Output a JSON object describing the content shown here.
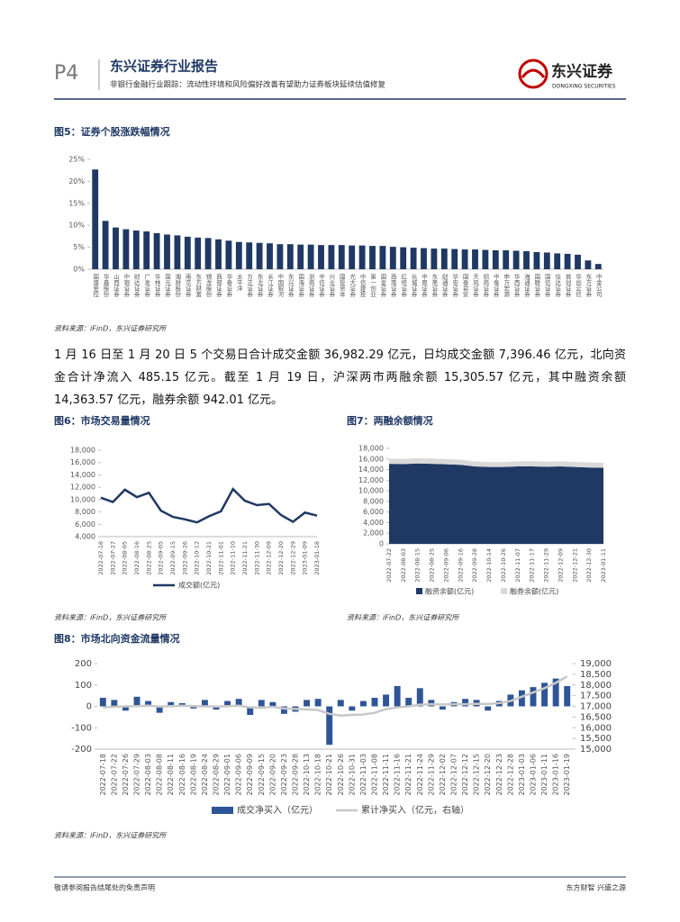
{
  "header": {
    "page": "P4",
    "report": "东兴证券行业报告",
    "subtitle": "非银行金融行业跟踪：流动性环境和风险偏好改善有望助力证券板块延续估值修复",
    "logo": "东兴证券",
    "logo_en": "DONGXING SECURITIES"
  },
  "body_text": "1 月 16 日至 1 月 20 日 5 个交易日合计成交金额 36,982.29 亿元，日均成交金额 7,396.46 亿元，北向资金合计净流入 485.15 亿元。截至 1 月 19 日，沪深两市两融余额 15,305.57 亿元，其中融资余额 14,363.57 亿元，融券余额 942.01 亿元。",
  "footer": {
    "left": "敬请参阅报告结尾处的免责声明",
    "right": "东方财智 兴盛之源"
  },
  "chart_data": [
    {
      "type": "bar",
      "title": "图5：证券个股涨跌幅情况",
      "source": "资料来源：iFinD，东兴证券研究所",
      "color": "#1f3864",
      "categories": [
        "国盛金控",
        "华鑫股份",
        "山西证券",
        "中银证券",
        "财达证券",
        "广发证券",
        "华林证券",
        "国元证券",
        "湘财股份",
        "南京证券",
        "东方财富",
        "锦龙股份",
        "西部证券",
        "华泰证券",
        "太平洋",
        "方正证券",
        "东北证券",
        "长江证券",
        "中国银河",
        "东兴证券",
        "国海证券",
        "浙商证券",
        "中信证券",
        "兴业证券",
        "国投资本",
        "光大证券",
        "中信建投",
        "第一创业",
        "国金证券",
        "西南证券",
        "红塔证券",
        "长城证券",
        "中原证券",
        "东吴证券",
        "财通证券",
        "华安证券",
        "国泰君安",
        "天风证券",
        "招商证券",
        "中泰证券",
        "申万宏源",
        "华西证券",
        "海通证券",
        "国联证券",
        "国信证券",
        "信达证券",
        "首创证券",
        "华创云信",
        "东方证券",
        "中金公司"
      ],
      "values": [
        22.7,
        11.0,
        9.5,
        9.1,
        8.8,
        8.6,
        8.2,
        7.9,
        7.7,
        7.4,
        7.2,
        7.1,
        6.8,
        6.5,
        6.2,
        6.1,
        6.0,
        5.9,
        5.7,
        5.7,
        5.6,
        5.6,
        5.5,
        5.5,
        5.5,
        5.4,
        5.4,
        5.3,
        5.3,
        5.1,
        5.0,
        4.9,
        4.8,
        4.7,
        4.7,
        4.6,
        4.5,
        4.5,
        4.4,
        4.3,
        4.3,
        4.2,
        4.1,
        3.9,
        3.8,
        3.6,
        3.5,
        3.3,
        2.0,
        1.2
      ],
      "ylim": [
        0,
        25
      ],
      "yticks": [
        {
          "value": 0,
          "label": "0%"
        },
        {
          "value": 5,
          "label": "5%"
        },
        {
          "value": 10,
          "label": "10%"
        },
        {
          "value": 15,
          "label": "15%"
        },
        {
          "value": 20,
          "label": "20%"
        },
        {
          "value": 25,
          "label": "25%"
        }
      ]
    },
    {
      "type": "line",
      "title": "图6：市场交易量情况",
      "source": "资料来源：iFinD，东兴证券研究所",
      "categories": [
        "2022-07-18",
        "2022-07-27",
        "2022-08-05",
        "2022-08-16",
        "2022-08-25",
        "2022-09-05",
        "2022-09-15",
        "2022-09-26",
        "2022-10-12",
        "2022-10-21",
        "2022-11-01",
        "2022-11-10",
        "2022-11-21",
        "2022-11-30",
        "2022-12-09",
        "2022-12-20",
        "2022-12-29",
        "2023-01-09",
        "2023-01-18"
      ],
      "series": [
        {
          "name": "成交额(亿元)",
          "color": "#1f3864",
          "values": [
            10300,
            9600,
            11600,
            10400,
            11100,
            8200,
            7200,
            6800,
            6300,
            7300,
            8100,
            11700,
            9800,
            9100,
            9300,
            7500,
            6400,
            7900,
            7400
          ]
        }
      ],
      "ylim": [
        4000,
        18000
      ],
      "yticks": [
        {
          "value": 4000,
          "label": "4,000"
        },
        {
          "value": 6000,
          "label": "6,000"
        },
        {
          "value": 8000,
          "label": "8,000"
        },
        {
          "value": 10000,
          "label": "10,000"
        },
        {
          "value": 12000,
          "label": "12,000"
        },
        {
          "value": 14000,
          "label": "14,000"
        },
        {
          "value": 16000,
          "label": "16,000"
        },
        {
          "value": 18000,
          "label": "18,000"
        }
      ],
      "legend": "bottom"
    },
    {
      "type": "area",
      "stacked": true,
      "title": "图7：两融余额情况",
      "source": "资料来源：iFinD，东兴证券研究所",
      "categories": [
        "2022-07-22",
        "2022-08-03",
        "2022-08-15",
        "2022-08-25",
        "2022-09-06",
        "2022-09-16",
        "2022-09-28",
        "2022-10-14",
        "2022-10-26",
        "2022-11-07",
        "2022-11-17",
        "2022-11-29",
        "2022-12-09",
        "2022-12-21",
        "2022-12-30",
        "2023-01-11"
      ],
      "series": [
        {
          "name": "融资余额(亿元)",
          "color": "#1f3864",
          "values": [
            15100,
            15050,
            15150,
            15100,
            15000,
            14900,
            14600,
            14500,
            14500,
            14600,
            14600,
            14550,
            14600,
            14500,
            14400,
            14350
          ]
        },
        {
          "name": "融券余额(亿元)",
          "color": "#d9d9d9",
          "values": [
            950,
            960,
            980,
            1000,
            990,
            970,
            940,
            920,
            930,
            960,
            980,
            970,
            960,
            950,
            940,
            930
          ]
        }
      ],
      "ylim": [
        0,
        18000
      ],
      "yticks": [
        0,
        {
          "value": 2000,
          "label": "2,000"
        },
        {
          "value": 4000,
          "label": "4,000"
        },
        {
          "value": 6000,
          "label": "6,000"
        },
        {
          "value": 8000,
          "label": "8,000"
        },
        {
          "value": 10000,
          "label": "10,000"
        },
        {
          "value": 12000,
          "label": "12,000"
        },
        {
          "value": 14000,
          "label": "14,000"
        },
        {
          "value": 16000,
          "label": "16,000"
        },
        {
          "value": 18000,
          "label": "18,000"
        }
      ],
      "legend": "bottom"
    },
    {
      "type": "combo",
      "title": "图8：市场北向资金流量情况",
      "source": "资料来源：iFinD，东兴证券研究所",
      "categories": [
        "2022-07-18",
        "2022-07-22",
        "2022-07-26",
        "2022-07-29",
        "2022-08-03",
        "2022-08-08",
        "2022-08-11",
        "2022-08-16",
        "2022-08-19",
        "2022-08-24",
        "2022-08-29",
        "2022-09-01",
        "2022-09-06",
        "2022-09-09",
        "2022-09-15",
        "2022-09-20",
        "2022-09-23",
        "2022-09-28",
        "2022-10-13",
        "2022-10-18",
        "2022-10-21",
        "2022-10-26",
        "2022-10-31",
        "2022-11-03",
        "2022-11-08",
        "2022-11-11",
        "2022-11-16",
        "2022-11-21",
        "2022-11-24",
        "2022-11-29",
        "2022-12-02",
        "2022-12-07",
        "2022-12-12",
        "2022-12-15",
        "2022-12-20",
        "2022-12-23",
        "2022-12-28",
        "2023-01-03",
        "2023-01-06",
        "2023-01-11",
        "2023-01-16",
        "2023-01-19"
      ],
      "series": [
        {
          "name": "成交净买入（亿元）",
          "type": "bar",
          "color": "#2e5597",
          "values": [
            40,
            30,
            -20,
            45,
            25,
            -30,
            20,
            15,
            -10,
            30,
            -15,
            25,
            35,
            -40,
            30,
            20,
            -35,
            -25,
            30,
            35,
            -180,
            30,
            -20,
            25,
            40,
            55,
            95,
            40,
            85,
            30,
            -15,
            20,
            35,
            30,
            -20,
            25,
            55,
            75,
            90,
            110,
            130,
            95
          ]
        },
        {
          "name": "累计净买入（亿元，右轴）",
          "type": "line",
          "axis": "y2",
          "color": "#c8c8c8",
          "values": [
            16950,
            16980,
            17000,
            17010,
            17030,
            16990,
            17010,
            17030,
            17010,
            17000,
            16990,
            17010,
            17030,
            16950,
            16930,
            16980,
            16900,
            16880,
            16860,
            16830,
            16650,
            16570,
            16600,
            16620,
            16700,
            16870,
            16950,
            17000,
            17080,
            17100,
            17090,
            17100,
            17100,
            17120,
            17110,
            17150,
            17250,
            17450,
            17650,
            17850,
            18100,
            18400
          ]
        }
      ],
      "ylim": [
        -200,
        200
      ],
      "yticks": [
        -200,
        -100,
        0,
        100,
        200
      ],
      "y2lim": [
        15000,
        19000
      ],
      "y2ticks": [
        {
          "value": 15000,
          "label": "15,000"
        },
        {
          "value": 15500,
          "label": "15,500"
        },
        {
          "value": 16000,
          "label": "16,000"
        },
        {
          "value": 16500,
          "label": "16,500"
        },
        {
          "value": 17000,
          "label": "17,000"
        },
        {
          "value": 17500,
          "label": "17,500"
        },
        {
          "value": 18000,
          "label": "18,000"
        },
        {
          "value": 18500,
          "label": "18,500"
        },
        {
          "value": 19000,
          "label": "19,000"
        }
      ],
      "legend": "bottom"
    }
  ]
}
